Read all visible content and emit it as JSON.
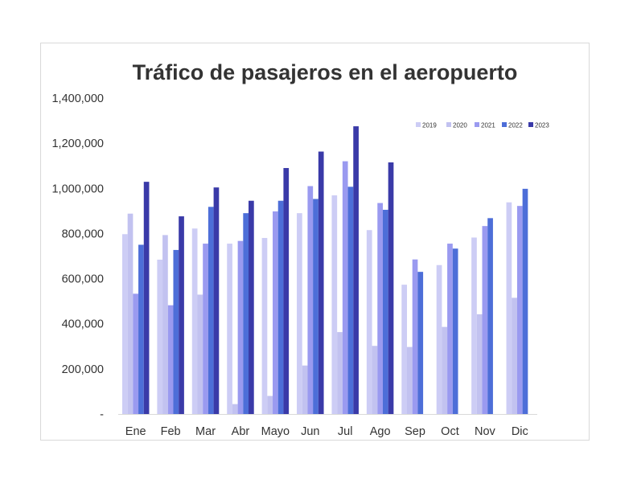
{
  "chart_data": {
    "type": "bar",
    "title": "Tráfico de pasajeros en el aeropuerto",
    "xlabel": "",
    "ylabel": "",
    "categories": [
      "Ene",
      "Feb",
      "Mar",
      "Abr",
      "Mayo",
      "Jun",
      "Jul",
      "Ago",
      "Sep",
      "Oct",
      "Nov",
      "Dic"
    ],
    "ylim": [
      0,
      1400000
    ],
    "y_ticks": [
      {
        "value": 1400000,
        "label": "1,400,000"
      },
      {
        "value": 1200000,
        "label": "1,200,000"
      },
      {
        "value": 1000000,
        "label": "1,000,000"
      },
      {
        "value": 800000,
        "label": "800,000"
      },
      {
        "value": 600000,
        "label": "600,000"
      },
      {
        "value": 400000,
        "label": "400,000"
      },
      {
        "value": 200000,
        "label": "200,000"
      },
      {
        "value": 0,
        "label": "-"
      }
    ],
    "grid": false,
    "legend_position": "top-right",
    "series": [
      {
        "name": "2019",
        "color": "#cdcdf5",
        "values": [
          797000,
          684000,
          822000,
          755000,
          780000,
          890000,
          969000,
          815000,
          573000,
          660000,
          782000,
          938000
        ]
      },
      {
        "name": "2020",
        "color": "#c2c2f0",
        "values": [
          888000,
          793000,
          529000,
          44000,
          80000,
          215000,
          363000,
          302000,
          297000,
          386000,
          442000,
          515000
        ]
      },
      {
        "name": "2021",
        "color": "#9a9af0",
        "values": [
          533000,
          482000,
          755000,
          767000,
          898000,
          1010000,
          1120000,
          935000,
          685000,
          755000,
          833000,
          922000
        ]
      },
      {
        "name": "2022",
        "color": "#4d6ed8",
        "values": [
          750000,
          727000,
          918000,
          890000,
          945000,
          953000,
          1007000,
          905000,
          630000,
          733000,
          868000,
          998000
        ]
      },
      {
        "name": "2023",
        "color": "#3a3aa8",
        "values": [
          1029000,
          876000,
          1004000,
          945000,
          1090000,
          1163000,
          1275000,
          1115000,
          null,
          null,
          null,
          null
        ]
      }
    ]
  }
}
